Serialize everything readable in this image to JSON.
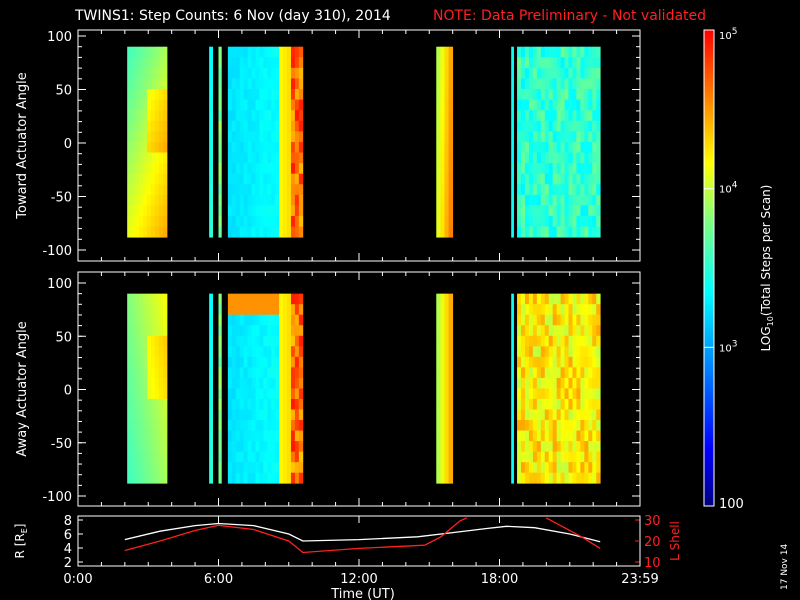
{
  "chart_data": {
    "type": "heatmap",
    "title": {
      "main": "TWINS1: Step Counts:  6 Nov (day 310), 2014",
      "note": "NOTE: Data Preliminary - Not validated",
      "note_color": "#ff2020"
    },
    "x_axis": {
      "label": "Time (UT)",
      "range_hours": [
        0,
        24
      ],
      "tick_labels": [
        "0:00",
        "6:00",
        "12:00",
        "18:00",
        "23:59"
      ]
    },
    "date_stamp": "17 Nov 14",
    "panels": [
      {
        "ylabel": "Toward Actuator Angle",
        "ylim": [
          -100,
          100
        ],
        "ytick_values": [
          100,
          50,
          0,
          -50,
          -100
        ],
        "ytick_labels": [
          "100",
          "50",
          "0",
          "-50",
          "-100"
        ],
        "data_range_y": [
          -88,
          90
        ]
      },
      {
        "ylabel": "Away Actuator Angle",
        "ylim": [
          -100,
          100
        ],
        "ytick_values": [
          100,
          50,
          0,
          -50,
          -100
        ],
        "ytick_labels": [
          "100",
          "50",
          "0",
          "-50",
          "-100"
        ],
        "data_range_y": [
          -88,
          90
        ]
      }
    ],
    "data_intervals_hours": [
      [
        2.1,
        3.8
      ],
      [
        5.6,
        5.75
      ],
      [
        6.0,
        6.12
      ],
      [
        6.4,
        9.6
      ],
      [
        15.3,
        16.0
      ],
      [
        18.5,
        18.6
      ],
      [
        18.75,
        22.3
      ]
    ],
    "colorbar": {
      "label": "LOG10(Total Steps per Scan)",
      "label_text": "LOG",
      "label_sub": "10",
      "label_rest": "(Total Steps per Scan)",
      "scale": "log",
      "range": [
        100,
        100000
      ],
      "ticks": [
        {
          "value": 100,
          "base": "100",
          "exp": ""
        },
        {
          "value": 1000,
          "base": "10",
          "exp": "3"
        },
        {
          "value": 10000,
          "base": "10",
          "exp": "4"
        },
        {
          "value": 100000,
          "base": "10",
          "exp": "5"
        }
      ]
    },
    "bottom_panel": {
      "left_axis": {
        "label": "R [R",
        "label_sub": "E",
        "label_close": "]",
        "ylim": [
          2,
          8
        ],
        "tick_values": [
          8,
          6,
          4,
          2
        ],
        "tick_labels": [
          "8",
          "6",
          "4",
          "2"
        ],
        "color": "#ffffff"
      },
      "right_axis": {
        "label": "L Shell",
        "ylim": [
          10,
          30
        ],
        "tick_values": [
          30,
          20,
          10
        ],
        "tick_labels": [
          "30",
          "20",
          "10"
        ],
        "color": "#ff2020"
      },
      "series": [
        {
          "axis": "left",
          "color": "#ffffff",
          "points": [
            [
              2.0,
              5.2
            ],
            [
              3.5,
              6.4
            ],
            [
              5.0,
              7.2
            ],
            [
              6.0,
              7.5
            ],
            [
              7.5,
              7.2
            ],
            [
              9.0,
              6.0
            ],
            [
              9.6,
              5.0
            ],
            [
              12.0,
              5.2
            ],
            [
              14.5,
              5.6
            ],
            [
              16.0,
              6.2
            ],
            [
              17.5,
              6.8
            ],
            [
              18.3,
              7.1
            ],
            [
              19.5,
              6.9
            ],
            [
              21.0,
              6.0
            ],
            [
              22.3,
              4.9
            ]
          ]
        },
        {
          "axis": "right",
          "color": "#ff2020",
          "points": [
            [
              2.0,
              15.5
            ],
            [
              3.5,
              20.0
            ],
            [
              5.0,
              25.0
            ],
            [
              6.0,
              27.5
            ],
            [
              7.5,
              25.5
            ],
            [
              9.0,
              20.0
            ],
            [
              9.6,
              14.5
            ],
            [
              12.0,
              16.5
            ],
            [
              14.8,
              18.0
            ],
            [
              15.5,
              22.0
            ],
            [
              16.3,
              29.5
            ],
            [
              16.6,
              31.0
            ]
          ]
        },
        {
          "axis": "right",
          "color": "#ff2020",
          "points": [
            [
              20.0,
              31.0
            ],
            [
              20.5,
              28.0
            ],
            [
              21.5,
              22.0
            ],
            [
              22.3,
              16.5
            ]
          ]
        }
      ]
    }
  }
}
